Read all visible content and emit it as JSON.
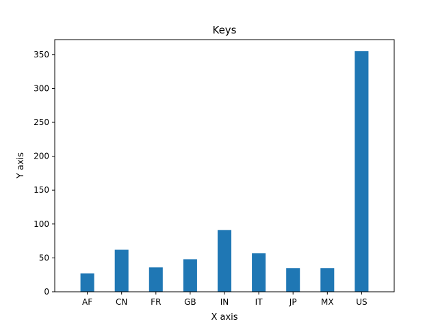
{
  "chart_data": {
    "type": "bar",
    "title": "Keys",
    "xlabel": "X axis",
    "ylabel": "Y axis",
    "categories": [
      "AF",
      "CN",
      "FR",
      "GB",
      "IN",
      "IT",
      "JP",
      "MX",
      "US"
    ],
    "values": [
      27,
      62,
      36,
      48,
      91,
      57,
      35,
      35,
      355
    ],
    "ylim": [
      0,
      372
    ],
    "yticks": [
      0,
      50,
      100,
      150,
      200,
      250,
      300,
      350
    ],
    "grid": false,
    "legend": "none",
    "bar_color": "#1f77b4"
  }
}
